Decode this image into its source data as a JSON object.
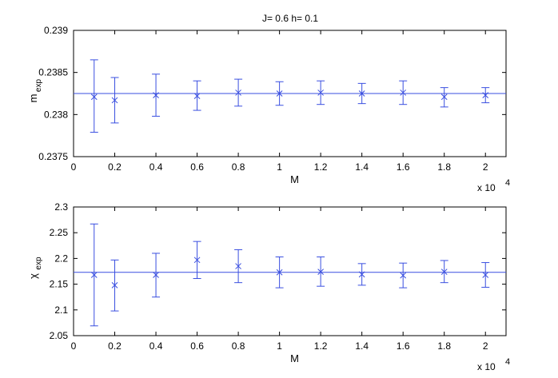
{
  "title": "J= 0.6 h= 0.1",
  "colors": {
    "series": "#3a4fe0",
    "axes": "#000000",
    "background": "#ffffff"
  },
  "chart_data": [
    {
      "type": "scatter",
      "error_bars": true,
      "marker": "x",
      "ylabel_main": "m",
      "ylabel_sub": "exp",
      "xlabel": "M",
      "x_multiplier_text": "x 10",
      "x_multiplier_exponent": "4",
      "xlim": [
        0,
        21000
      ],
      "ylim": [
        0.2375,
        0.239
      ],
      "x_ticks": [
        0,
        2000,
        4000,
        6000,
        8000,
        10000,
        12000,
        14000,
        16000,
        18000,
        20000
      ],
      "x_tick_labels": [
        "0",
        "0.2",
        "0.4",
        "0.6",
        "0.8",
        "1",
        "1.2",
        "1.4",
        "1.6",
        "1.8",
        "2"
      ],
      "y_ticks": [
        0.2375,
        0.238,
        0.2385,
        0.239
      ],
      "y_tick_labels": [
        "0.2375",
        "0.238",
        "0.2385",
        "0.239"
      ],
      "reference_line": 0.23825,
      "grid": false,
      "x": [
        1000,
        2000,
        4000,
        6000,
        8000,
        10000,
        12000,
        14000,
        16000,
        18000,
        20000
      ],
      "y": [
        0.23821,
        0.23817,
        0.23823,
        0.23822,
        0.23826,
        0.23825,
        0.23826,
        0.23825,
        0.23826,
        0.23821,
        0.23823
      ],
      "err_low": [
        0.23779,
        0.2379,
        0.23798,
        0.23805,
        0.2381,
        0.23811,
        0.23812,
        0.23813,
        0.23812,
        0.23809,
        0.23814
      ],
      "err_high": [
        0.23865,
        0.23844,
        0.23848,
        0.2384,
        0.23842,
        0.23839,
        0.2384,
        0.23837,
        0.2384,
        0.23832,
        0.23832
      ]
    },
    {
      "type": "scatter",
      "error_bars": true,
      "marker": "x",
      "ylabel_main": "χ",
      "ylabel_sub": "exp",
      "xlabel": "M",
      "x_multiplier_text": "x 10",
      "x_multiplier_exponent": "4",
      "xlim": [
        0,
        21000
      ],
      "ylim": [
        2.05,
        2.3
      ],
      "x_ticks": [
        0,
        2000,
        4000,
        6000,
        8000,
        10000,
        12000,
        14000,
        16000,
        18000,
        20000
      ],
      "x_tick_labels": [
        "0",
        "0.2",
        "0.4",
        "0.6",
        "0.8",
        "1",
        "1.2",
        "1.4",
        "1.6",
        "1.8",
        "2"
      ],
      "y_ticks": [
        2.05,
        2.1,
        2.15,
        2.2,
        2.25,
        2.3
      ],
      "y_tick_labels": [
        "2.05",
        "2.1",
        "2.15",
        "2.2",
        "2.25",
        "2.3"
      ],
      "reference_line": 2.173,
      "grid": false,
      "x": [
        1000,
        2000,
        4000,
        6000,
        8000,
        10000,
        12000,
        14000,
        16000,
        18000,
        20000
      ],
      "y": [
        2.168,
        2.148,
        2.168,
        2.197,
        2.185,
        2.173,
        2.174,
        2.169,
        2.167,
        2.174,
        2.168
      ],
      "err_low": [
        2.069,
        2.098,
        2.125,
        2.161,
        2.153,
        2.143,
        2.146,
        2.148,
        2.143,
        2.153,
        2.144
      ],
      "err_high": [
        2.267,
        2.197,
        2.21,
        2.233,
        2.217,
        2.203,
        2.203,
        2.19,
        2.191,
        2.196,
        2.192
      ]
    }
  ]
}
